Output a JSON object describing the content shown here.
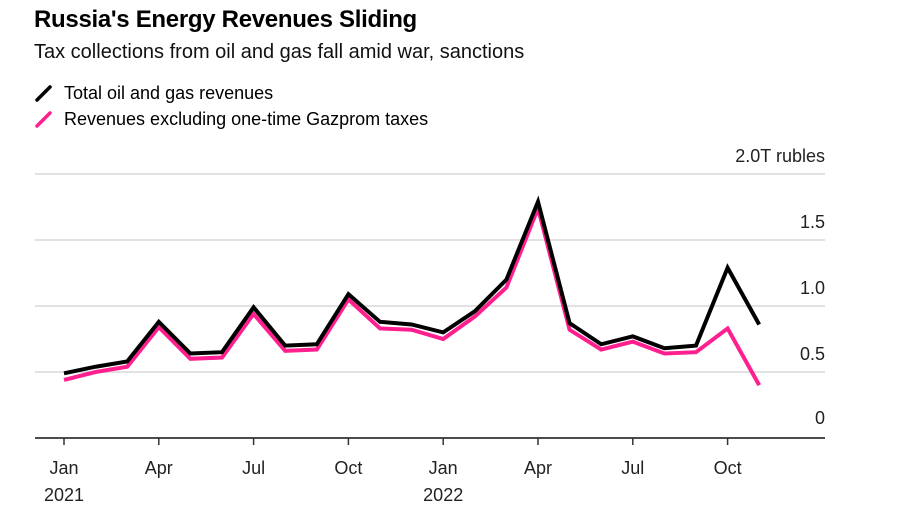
{
  "chart_data": {
    "type": "line",
    "title": "Russia's Energy Revenues Sliding",
    "subtitle": "Tax collections from oil and gas fall amid war, sanctions",
    "xlabel": "",
    "ylabel": "",
    "y_unit_label": "2.0T rubles",
    "ylim": [
      0,
      2.0
    ],
    "grid": true,
    "legend_position": "top-left",
    "y_ticks": [
      {
        "value": 2.0,
        "label": "2.0T rubles"
      },
      {
        "value": 1.5,
        "label": "1.5"
      },
      {
        "value": 1.0,
        "label": "1.0"
      },
      {
        "value": 0.5,
        "label": "0.5"
      },
      {
        "value": 0,
        "label": "0"
      }
    ],
    "x": [
      "2021-01",
      "2021-02",
      "2021-03",
      "2021-04",
      "2021-05",
      "2021-06",
      "2021-07",
      "2021-08",
      "2021-09",
      "2021-10",
      "2021-11",
      "2021-12",
      "2022-01",
      "2022-02",
      "2022-03",
      "2022-04",
      "2022-05",
      "2022-06",
      "2022-07",
      "2022-08",
      "2022-09",
      "2022-10",
      "2022-11"
    ],
    "x_ticks": [
      {
        "index": 0,
        "label": "Jan",
        "sublabel": "2021"
      },
      {
        "index": 3,
        "label": "Apr",
        "sublabel": ""
      },
      {
        "index": 6,
        "label": "Jul",
        "sublabel": ""
      },
      {
        "index": 9,
        "label": "Oct",
        "sublabel": ""
      },
      {
        "index": 12,
        "label": "Jan",
        "sublabel": "2022"
      },
      {
        "index": 15,
        "label": "Apr",
        "sublabel": ""
      },
      {
        "index": 18,
        "label": "Jul",
        "sublabel": ""
      },
      {
        "index": 21,
        "label": "Oct",
        "sublabel": ""
      }
    ],
    "series": [
      {
        "name": "Total oil and gas revenues",
        "color": "#000000",
        "values": [
          0.49,
          0.54,
          0.58,
          0.88,
          0.64,
          0.65,
          0.99,
          0.7,
          0.71,
          1.09,
          0.88,
          0.86,
          0.8,
          0.96,
          1.2,
          1.79,
          0.87,
          0.71,
          0.77,
          0.68,
          0.7,
          1.29,
          0.86
        ]
      },
      {
        "name": "Revenues excluding one-time Gazprom taxes",
        "color": "#ff1f8e",
        "values": [
          0.44,
          0.5,
          0.54,
          0.84,
          0.6,
          0.61,
          0.94,
          0.66,
          0.67,
          1.05,
          0.83,
          0.82,
          0.75,
          0.92,
          1.14,
          1.74,
          0.82,
          0.67,
          0.73,
          0.64,
          0.65,
          0.83,
          0.4
        ]
      }
    ]
  }
}
